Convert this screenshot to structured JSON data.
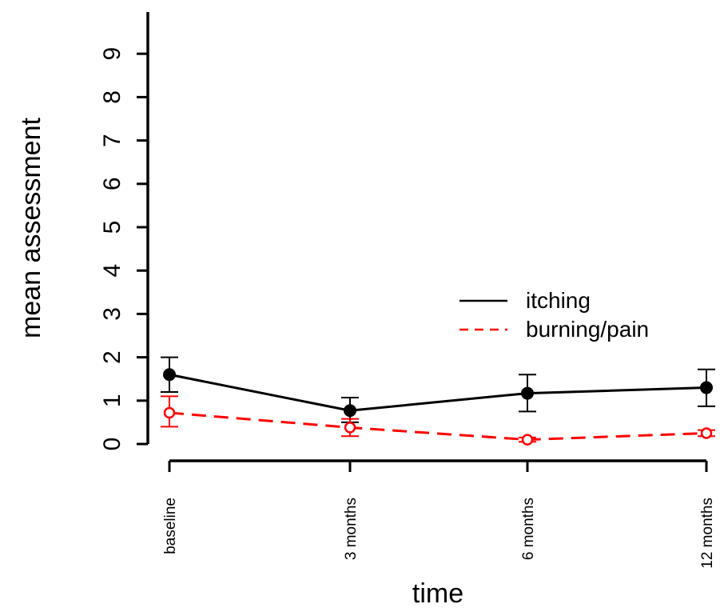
{
  "chart_data": {
    "type": "line",
    "categories": [
      "baseline",
      "3 months",
      "6 months",
      "12 months"
    ],
    "xlabel": "time",
    "ylabel": "mean assessment",
    "yticks": [
      0,
      1,
      2,
      3,
      4,
      5,
      6,
      7,
      8,
      9
    ],
    "ylim": [
      0,
      10
    ],
    "grid": false,
    "legend_position": "right",
    "series": [
      {
        "name": "itching",
        "color": "#000000",
        "line_style": "solid",
        "marker": "filled-circle",
        "values": [
          1.6,
          0.77,
          1.17,
          1.3
        ],
        "error_low": [
          1.2,
          0.5,
          0.75,
          0.87
        ],
        "error_high": [
          2.0,
          1.07,
          1.6,
          1.72
        ]
      },
      {
        "name": "burning/pain",
        "color": "#ff0000",
        "line_style": "dashed",
        "marker": "open-circle",
        "values": [
          0.72,
          0.38,
          0.1,
          0.25
        ],
        "error_low": [
          0.4,
          0.18,
          0.05,
          0.18
        ],
        "error_high": [
          1.1,
          0.58,
          0.15,
          0.32
        ]
      }
    ]
  }
}
